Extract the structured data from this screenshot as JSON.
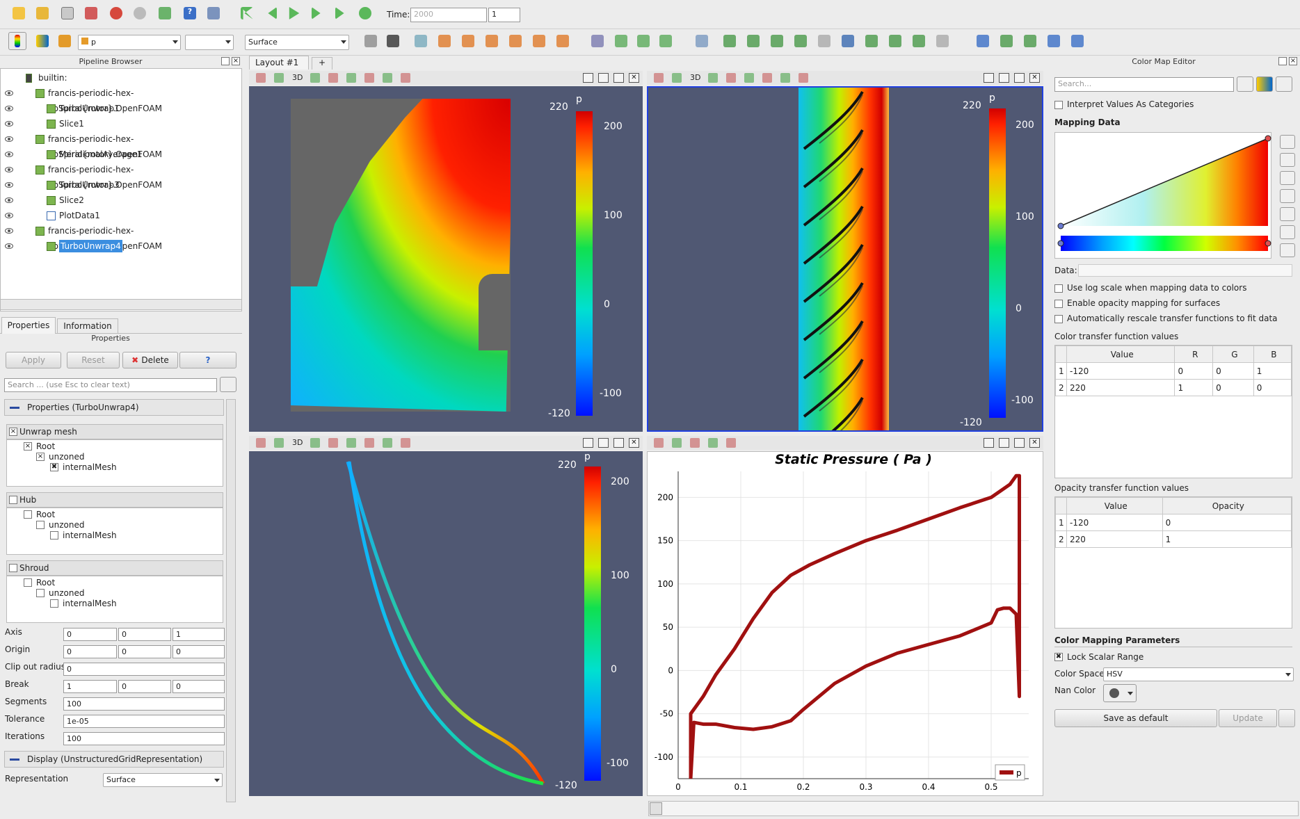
{
  "toolbar": {
    "time_label": "Time:",
    "time_value": "2000",
    "time_index": "1",
    "color_var": "p",
    "representation": "Surface"
  },
  "pipeline": {
    "title": "Pipeline Browser",
    "items": [
      {
        "label": "builtin:"
      },
      {
        "label": "francis-periodic-hex-noSpiral{rotor}.OpenFOAM"
      },
      {
        "label": "TurboUnwrap1"
      },
      {
        "label": "Slice1"
      },
      {
        "label": "francis-periodic-hex-noSpiral{rotor}.OpenFOAM"
      },
      {
        "label": "MeridionalAverage1"
      },
      {
        "label": "francis-periodic-hex-noSpiral{rotor}.OpenFOAM"
      },
      {
        "label": "TurboUnwrap3"
      },
      {
        "label": "Slice2"
      },
      {
        "label": "PlotData1"
      },
      {
        "label": "francis-periodic-hex-noSpiral{rotor}.OpenFOAM"
      },
      {
        "label": "TurboUnwrap4"
      }
    ]
  },
  "props": {
    "tab_properties": "Properties",
    "tab_information": "Information",
    "title": "Properties",
    "apply": "Apply",
    "reset": "Reset",
    "delete": "Delete",
    "help": "?",
    "search_placeholder": "Search ... (use Esc to clear text)",
    "section": "Properties (TurboUnwrap4)",
    "unwrap_mesh": "Unwrap mesh",
    "hub": "Hub",
    "shroud": "Shroud",
    "root": "Root",
    "unzoned": "unzoned",
    "internal": "internalMesh",
    "axis_label": "Axis",
    "axis": [
      "0",
      "0",
      "1"
    ],
    "origin_label": "Origin",
    "origin": [
      "0",
      "0",
      "0"
    ],
    "clip_label": "Clip out radius",
    "clip": "0",
    "break_label": "Break",
    "break": [
      "1",
      "0",
      "0"
    ],
    "segments_label": "Segments",
    "segments": "100",
    "tolerance_label": "Tolerance",
    "tolerance": "1e-05",
    "iterations_label": "Iterations",
    "iterations": "100",
    "display": "Display (UnstructuredGridRepresentation)",
    "repr_label": "Representation",
    "repr": "Surface"
  },
  "layout": {
    "tab": "Layout #1",
    "plus": "+"
  },
  "views": {
    "label_3d": "3D",
    "cbar_title": "p",
    "cbar_max": "220",
    "cbar_min": "-120",
    "ticks": [
      "200",
      "100",
      "0",
      "-100"
    ]
  },
  "chart_data": {
    "type": "line",
    "title": "Static Pressure ( Pa )",
    "xlim": [
      0,
      0.56
    ],
    "ylim": [
      -125,
      230
    ],
    "x_ticks": [
      "0",
      "0.1",
      "0.2",
      "0.3",
      "0.4",
      "0.5"
    ],
    "y_ticks": [
      "200",
      "150",
      "100",
      "50",
      "0",
      "-50",
      "-100"
    ],
    "series": [
      {
        "name": "p",
        "color": "#a01010",
        "x": [
          0.02,
          0.02,
          0.025,
          0.04,
          0.06,
          0.09,
          0.12,
          0.15,
          0.18,
          0.21,
          0.25,
          0.3,
          0.35,
          0.4,
          0.45,
          0.5,
          0.53,
          0.54,
          0.545,
          0.545,
          0.54,
          0.53,
          0.52,
          0.51,
          0.5,
          0.45,
          0.4,
          0.35,
          0.3,
          0.25,
          0.2,
          0.18,
          0.15,
          0.12,
          0.09,
          0.06,
          0.04,
          0.025,
          0.02
        ],
        "y": [
          -125,
          -50,
          -45,
          -30,
          -5,
          25,
          60,
          90,
          110,
          122,
          135,
          150,
          162,
          175,
          188,
          200,
          215,
          225,
          225,
          -30,
          65,
          72,
          72,
          70,
          55,
          40,
          30,
          20,
          5,
          -15,
          -45,
          -58,
          -65,
          -68,
          -66,
          -62,
          -62,
          -60,
          -125
        ]
      }
    ],
    "legend": "p"
  },
  "cme": {
    "title": "Color Map Editor",
    "search_placeholder": "Search...",
    "interpret": "Interpret Values As Categories",
    "mapping": "Mapping Data",
    "data_label": "Data:",
    "log": "Use log scale when mapping data to colors",
    "opacity_map": "Enable opacity mapping for surfaces",
    "rescale": "Automatically rescale transfer functions to fit data",
    "ctf_title": "Color transfer function values",
    "ctf_headers": [
      "Value",
      "R",
      "G",
      "B"
    ],
    "ctf_rows": [
      [
        "1",
        "-120",
        "0",
        "0",
        "1"
      ],
      [
        "2",
        "220",
        "1",
        "0",
        "0"
      ]
    ],
    "otf_title": "Opacity transfer function values",
    "otf_headers": [
      "Value",
      "Opacity"
    ],
    "otf_rows": [
      [
        "1",
        "-120",
        "0"
      ],
      [
        "2",
        "220",
        "1"
      ]
    ],
    "params": "Color Mapping Parameters",
    "lock": "Lock Scalar Range",
    "space_label": "Color Space",
    "space": "HSV",
    "nan_label": "Nan Color",
    "save": "Save as default",
    "update": "Update"
  }
}
